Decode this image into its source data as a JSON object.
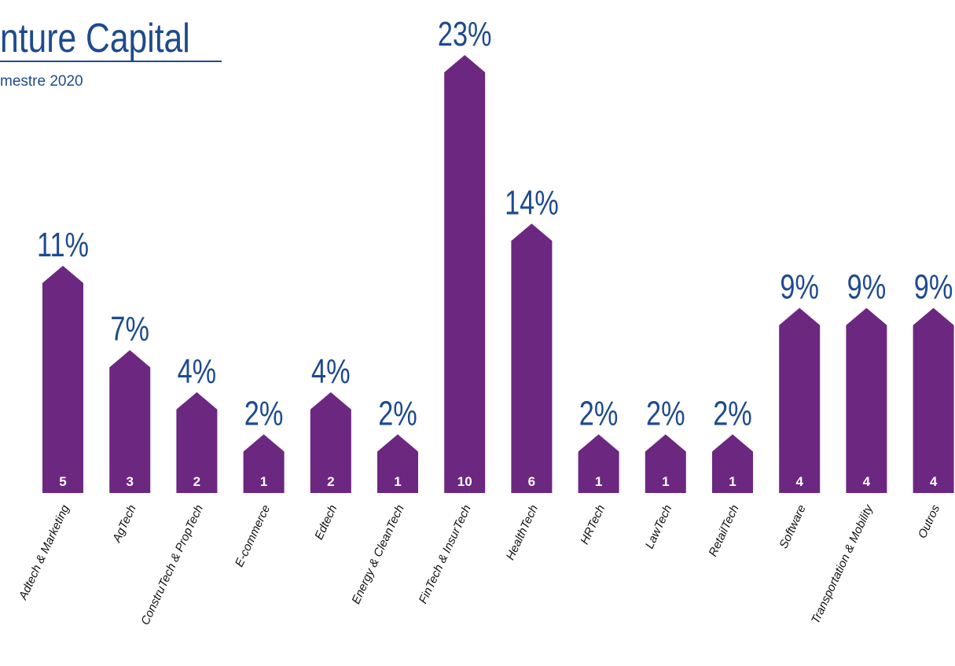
{
  "chart_data": {
    "type": "arrow-bar",
    "title": "nture Capital",
    "subtitle": "mestre 2020",
    "categories": [
      "Adtech & Marketing",
      "AgTech",
      "ConstruTech & PropTech",
      "E-commerce",
      "Edtech",
      "Energy & CleanTech",
      "FinTech & InsurTech",
      "HealthTech",
      "HRTech",
      "LawTech",
      "RetailTech",
      "Software",
      "Transportation & Mobility",
      "Outros"
    ],
    "values": [
      5,
      3,
      2,
      1,
      2,
      1,
      10,
      6,
      1,
      1,
      1,
      4,
      4,
      4
    ],
    "share_labels": [
      "11%",
      "7%",
      "4%",
      "2%",
      "4%",
      "2%",
      "23%",
      "14%",
      "2%",
      "2%",
      "2%",
      "9%",
      "9%",
      "9%"
    ],
    "color": "#6c2780",
    "label_color": "#1e4a8f"
  }
}
